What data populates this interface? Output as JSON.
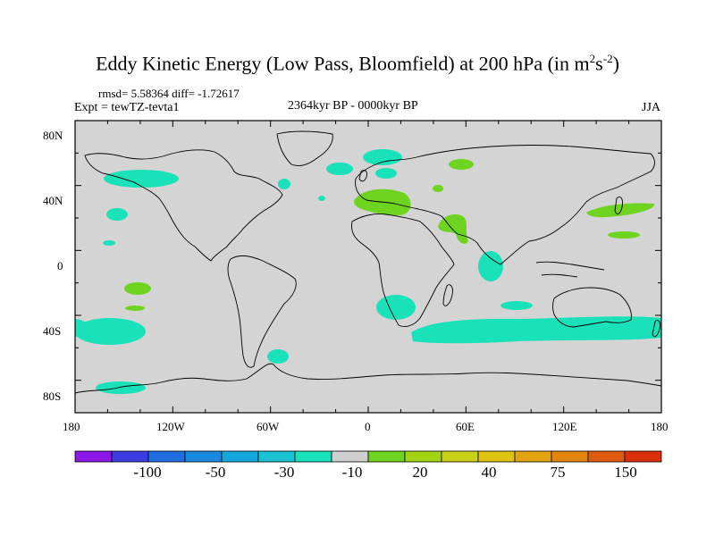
{
  "title": {
    "main": "Eddy Kinetic Energy (Low Pass, Bloomfield) at 200 hPa (in m",
    "sup1": "2",
    "mid": "s",
    "sup2": "-2",
    "end": ")"
  },
  "stats": "rmsd= 5.58364 diff= -1.72617",
  "experiment": "Expt = tewTZ-tevta1",
  "period": "2364kyr BP - 0000kyr BP",
  "season": "JJA",
  "map": {
    "background_color": "#d4d4d4",
    "lat_labels": [
      "80N",
      "40N",
      "0",
      "40S",
      "80S"
    ],
    "lon_labels": [
      "180",
      "120W",
      "60W",
      "0",
      "60E",
      "120E",
      "180"
    ],
    "anomaly_colors": {
      "negative_10_to_0": "#19e1b9",
      "positive_0_to_20": "#6fd41f"
    }
  },
  "colorbar": {
    "colors": [
      "#8a18e6",
      "#3c3ce0",
      "#1f6de1",
      "#1a8ae0",
      "#13a8db",
      "#1bc2d2",
      "#19e1b9",
      "#cfcfcf",
      "#6fd41f",
      "#a3d414",
      "#c9d116",
      "#e0c210",
      "#e4a40f",
      "#e3840e",
      "#df5a0c",
      "#dc300c"
    ],
    "labels": [
      "-100",
      "-50",
      "-30",
      "-10",
      "20",
      "40",
      "75",
      "150"
    ]
  }
}
